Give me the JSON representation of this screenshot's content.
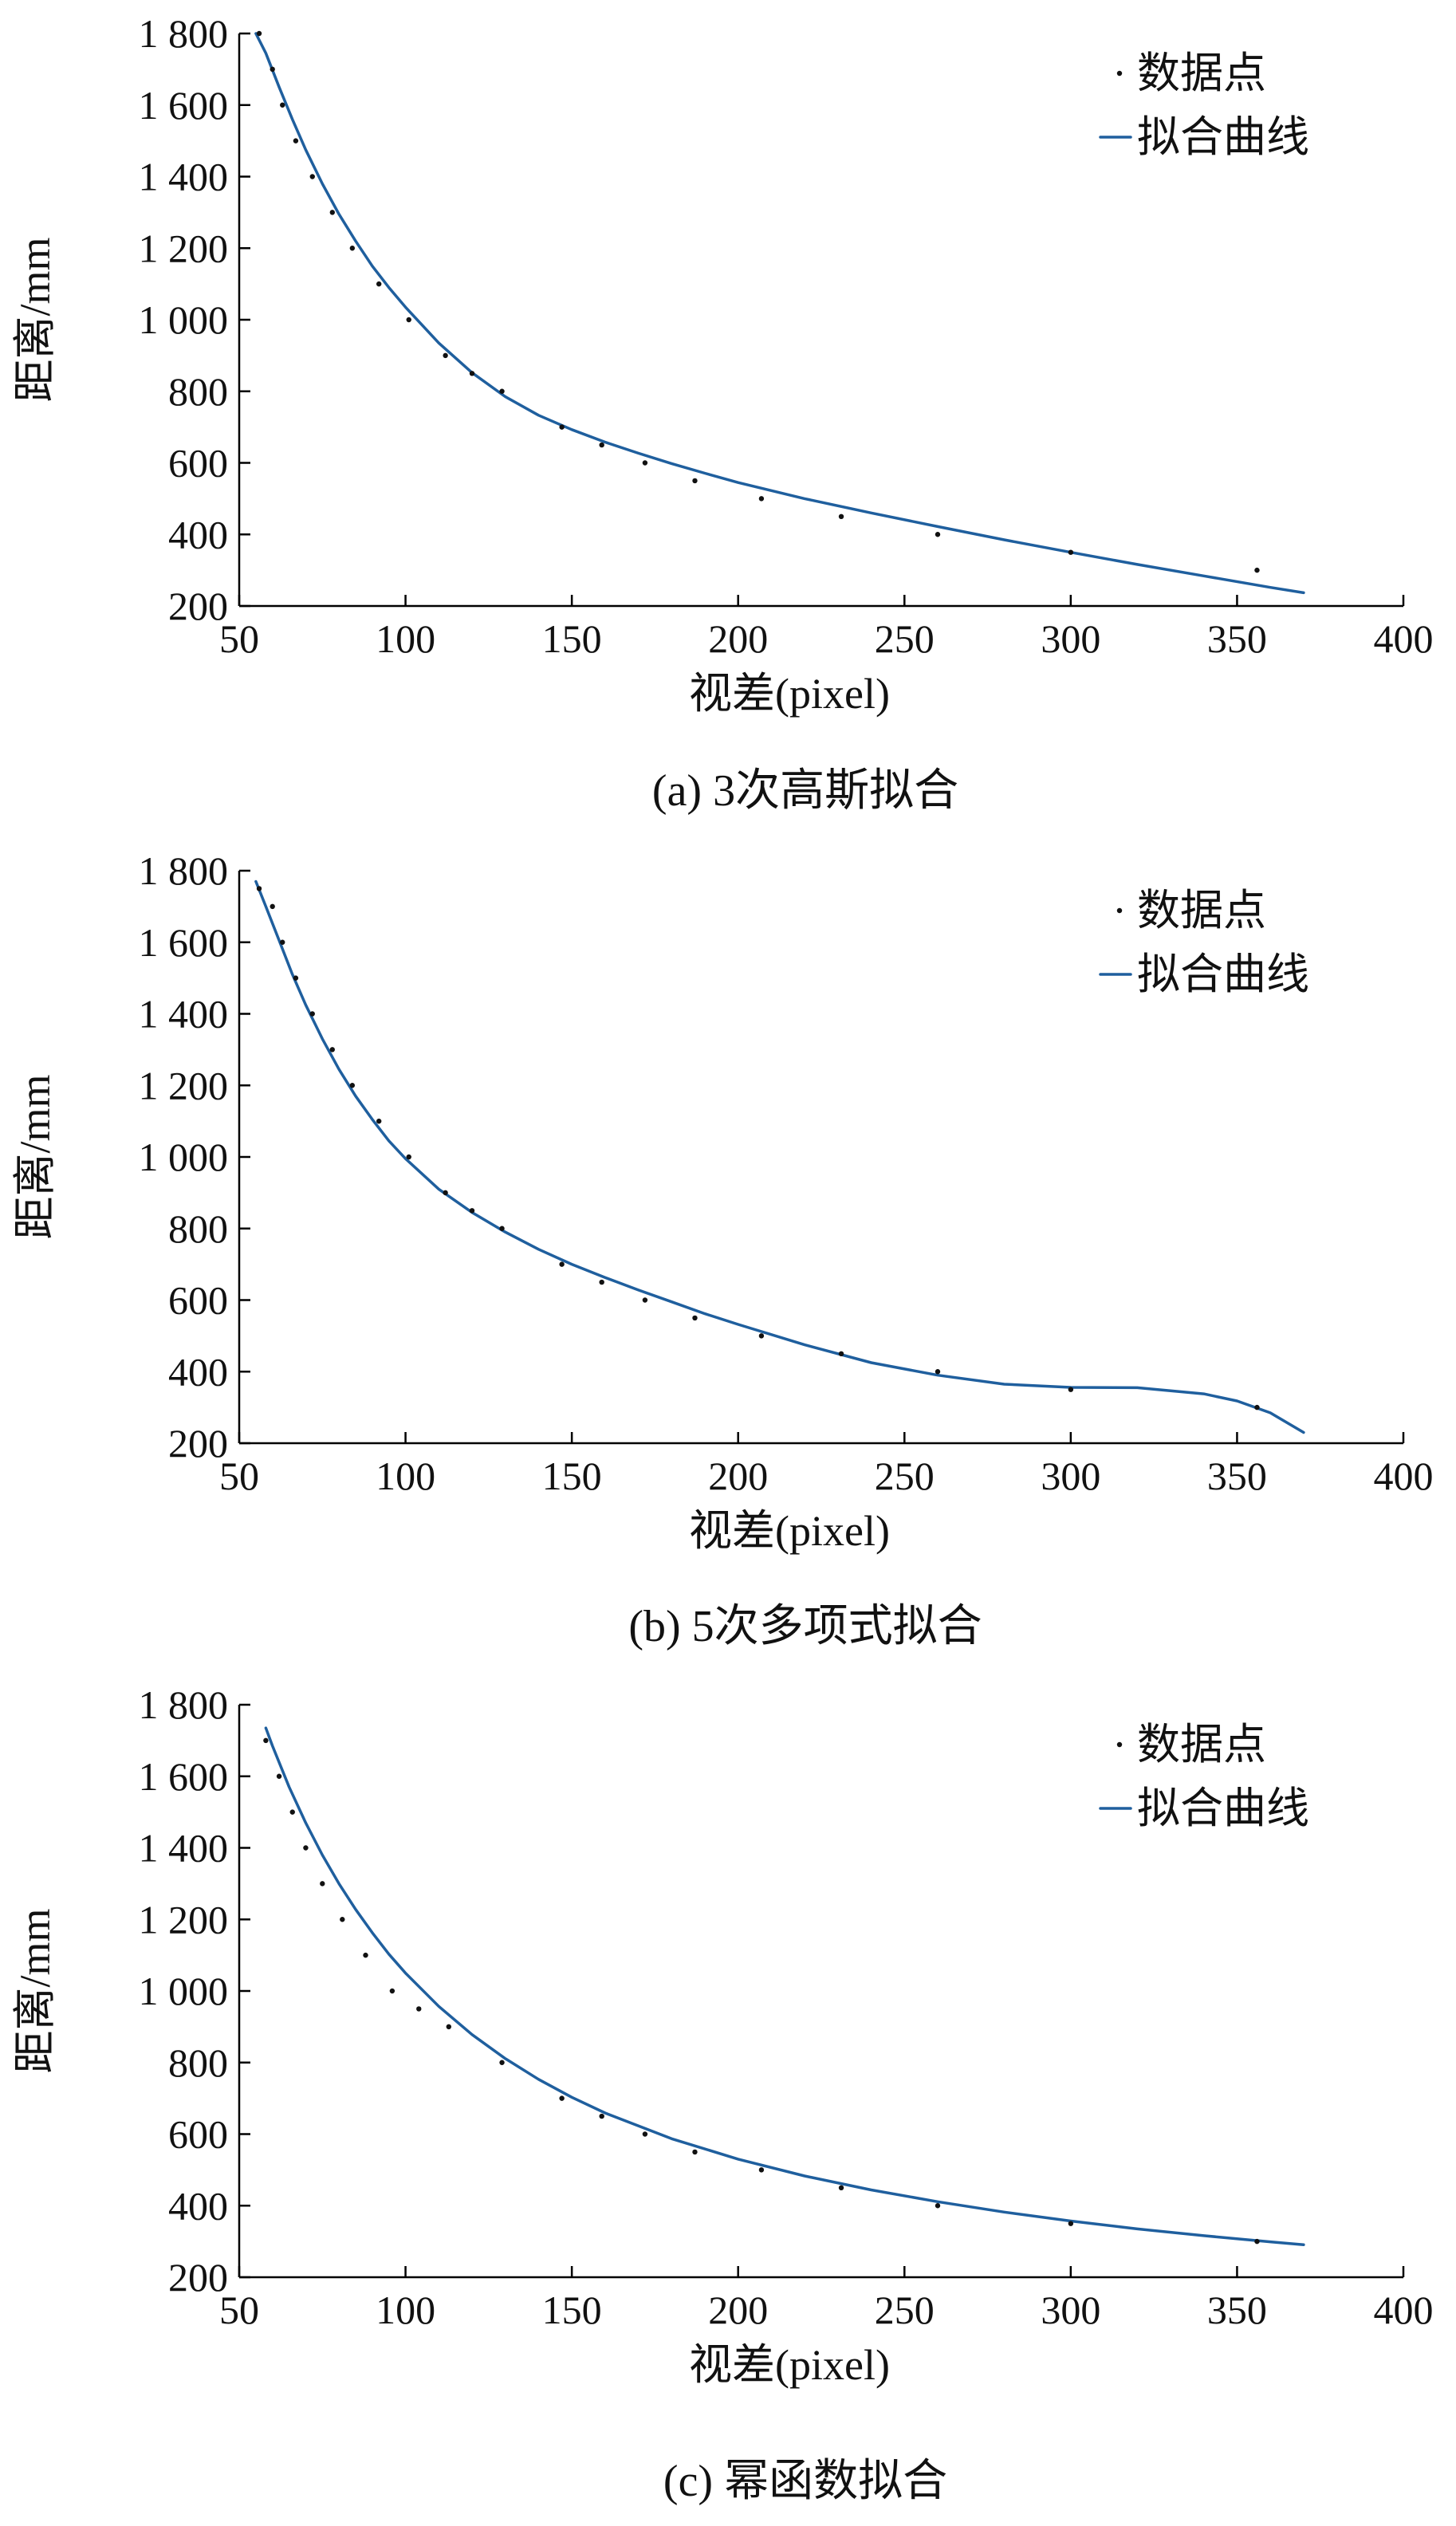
{
  "colors": {
    "fit_line": "#1f5f9e",
    "data_point": "#111111",
    "axis": "#000000"
  },
  "legend": {
    "points_label": "数据点",
    "line_label": "拟合曲线"
  },
  "chart_data": [
    {
      "type": "scatter",
      "caption": "(a) 3次高斯拟合",
      "xlabel": "视差(pixel)",
      "ylabel": "距离/mm",
      "xlim": [
        50,
        400
      ],
      "ylim": [
        200,
        1800
      ],
      "xticks": [
        "50",
        "100",
        "150",
        "200",
        "250",
        "300",
        "350",
        "400"
      ],
      "yticks": [
        "200",
        "400",
        "600",
        "800",
        "1 000",
        "1 200",
        "1 400",
        "1 600",
        "1 800"
      ],
      "legend_position": "top-right",
      "grid": false,
      "points": {
        "name": "数据点",
        "x": [
          56,
          60,
          63,
          67,
          72,
          78,
          84,
          92,
          101,
          112,
          120,
          129,
          147,
          159,
          172,
          187,
          207,
          231,
          260,
          300,
          356
        ],
        "y": [
          1800,
          1700,
          1600,
          1500,
          1400,
          1300,
          1200,
          1100,
          1000,
          900,
          850,
          800,
          700,
          650,
          600,
          550,
          500,
          450,
          400,
          350,
          300
        ]
      },
      "fit": {
        "name": "拟合曲线",
        "x": [
          55,
          58,
          62,
          66,
          70,
          75,
          80,
          85,
          90,
          95,
          100,
          110,
          120,
          130,
          140,
          150,
          160,
          170,
          180,
          190,
          200,
          220,
          240,
          260,
          280,
          300,
          320,
          340,
          360,
          370
        ],
        "y": [
          1800,
          1745,
          1650,
          1560,
          1475,
          1380,
          1295,
          1220,
          1150,
          1090,
          1035,
          935,
          852,
          785,
          733,
          693,
          658,
          627,
          598,
          571,
          545,
          500,
          460,
          422,
          385,
          350,
          316,
          284,
          252,
          237
        ]
      }
    },
    {
      "type": "scatter",
      "caption": "(b) 5次多项式拟合",
      "xlabel": "视差(pixel)",
      "ylabel": "距离/mm",
      "xlim": [
        50,
        400
      ],
      "ylim": [
        200,
        1800
      ],
      "xticks": [
        "50",
        "100",
        "150",
        "200",
        "250",
        "300",
        "350",
        "400"
      ],
      "yticks": [
        "200",
        "400",
        "600",
        "800",
        "1 000",
        "1 200",
        "1 400",
        "1 600",
        "1 800"
      ],
      "legend_position": "top-right",
      "grid": false,
      "points": {
        "name": "数据点",
        "x": [
          56,
          60,
          63,
          67,
          72,
          78,
          84,
          92,
          101,
          112,
          120,
          129,
          147,
          159,
          172,
          187,
          207,
          231,
          260,
          300,
          356
        ],
        "y": [
          1750,
          1700,
          1600,
          1500,
          1400,
          1300,
          1200,
          1100,
          1000,
          900,
          850,
          800,
          700,
          650,
          600,
          550,
          500,
          450,
          400,
          350,
          300
        ]
      },
      "fit": {
        "name": "拟合曲线",
        "x": [
          55,
          58,
          62,
          66,
          70,
          75,
          80,
          85,
          90,
          95,
          100,
          110,
          120,
          130,
          140,
          150,
          160,
          170,
          180,
          190,
          200,
          220,
          240,
          260,
          280,
          300,
          320,
          340,
          350,
          360,
          370
        ],
        "y": [
          1770,
          1700,
          1605,
          1510,
          1425,
          1330,
          1245,
          1170,
          1105,
          1045,
          995,
          910,
          845,
          790,
          742,
          700,
          663,
          628,
          595,
          562,
          532,
          475,
          425,
          390,
          365,
          356,
          355,
          338,
          318,
          285,
          230
        ]
      }
    },
    {
      "type": "scatter",
      "caption": "(c) 幂函数拟合",
      "xlabel": "视差(pixel)",
      "ylabel": "距离/mm",
      "xlim": [
        50,
        400
      ],
      "ylim": [
        200,
        1800
      ],
      "xticks": [
        "50",
        "100",
        "150",
        "200",
        "250",
        "300",
        "350",
        "400"
      ],
      "yticks": [
        "200",
        "400",
        "600",
        "800",
        "1 000",
        "1 200",
        "1 400",
        "1 600",
        "1 800"
      ],
      "legend_position": "top-right",
      "grid": false,
      "points": {
        "name": "数据点",
        "x": [
          58,
          62,
          66,
          70,
          75,
          81,
          88,
          96,
          104,
          113,
          129,
          147,
          159,
          172,
          187,
          207,
          231,
          260,
          300,
          356
        ],
        "y": [
          1700,
          1600,
          1500,
          1400,
          1300,
          1200,
          1100,
          1000,
          950,
          900,
          800,
          700,
          650,
          600,
          550,
          500,
          450,
          400,
          350,
          300
        ]
      },
      "fit": {
        "name": "拟合曲线",
        "x": [
          58,
          60,
          65,
          70,
          75,
          80,
          85,
          90,
          95,
          100,
          110,
          120,
          130,
          140,
          150,
          160,
          180,
          200,
          220,
          240,
          260,
          280,
          300,
          320,
          340,
          360,
          370
        ],
        "y": [
          1735,
          1685,
          1570,
          1470,
          1380,
          1300,
          1228,
          1163,
          1103,
          1050,
          957,
          878,
          811,
          753,
          703,
          659,
          587,
          530,
          483,
          444,
          411,
          382,
          357,
          335,
          316,
          299,
          291
        ]
      }
    }
  ]
}
